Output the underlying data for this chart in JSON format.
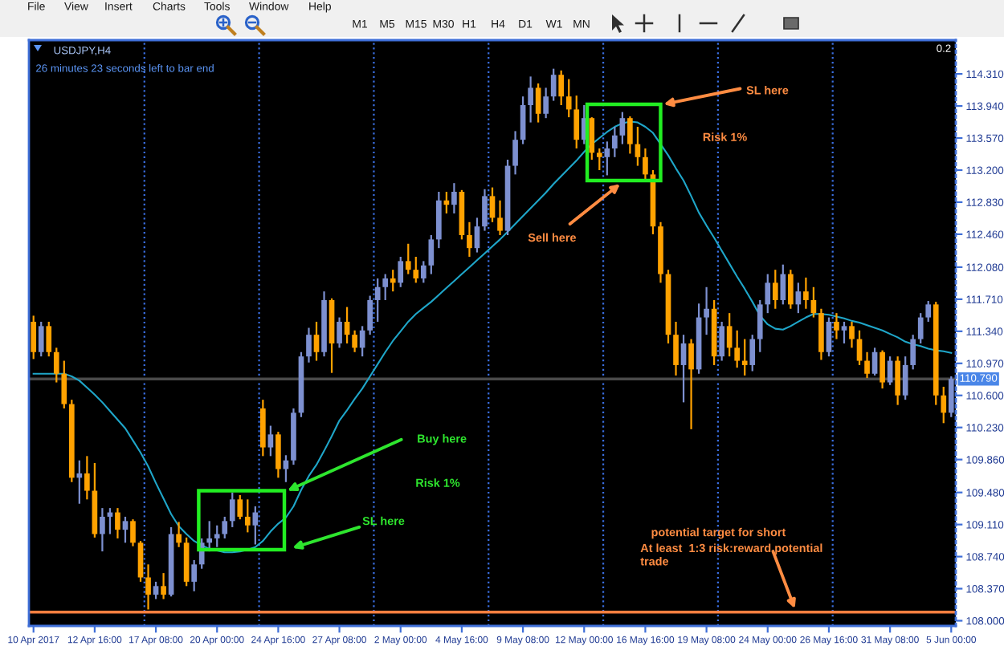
{
  "chart_data": [
    {
      "type": "other",
      "annotations": [
        "File",
        "View",
        "Insert",
        "Charts",
        "Tools",
        "Window",
        "Help",
        "M1",
        "M5",
        "M15",
        "M30",
        "H1",
        "H4",
        "D1",
        "W1",
        "MN"
      ]
    },
    {
      "type": "candlestick",
      "title": "USDJPY,H4",
      "subtitle": "26 minutes 23 seconds left to bar end",
      "categories": [
        "10 Apr 2017",
        null,
        null,
        null,
        null,
        null,
        null,
        null,
        "12 Apr 16:00",
        null,
        null,
        null,
        null,
        null,
        null,
        null,
        "17 Apr 08:00",
        null,
        null,
        null,
        null,
        null,
        null,
        null,
        "20 Apr 00:00",
        null,
        null,
        null,
        null,
        null,
        null,
        null,
        "24 Apr 16:00",
        null,
        null,
        null,
        null,
        null,
        null,
        null,
        "27 Apr 08:00",
        null,
        null,
        null,
        null,
        null,
        null,
        null,
        "2 May 00:00",
        null,
        null,
        null,
        null,
        null,
        null,
        null,
        "4 May 16:00",
        null,
        null,
        null,
        null,
        null,
        null,
        null,
        "9 May 08:00",
        null,
        null,
        null,
        null,
        null,
        null,
        null,
        "12 May 00:00",
        null,
        null,
        null,
        null,
        null,
        null,
        null,
        "16 May 16:00",
        null,
        null,
        null,
        null,
        null,
        null,
        null,
        "19 May 08:00",
        null,
        null,
        null,
        null,
        null,
        null,
        null,
        "24 May 00:00",
        null,
        null,
        null,
        null,
        null,
        null,
        null,
        "26 May 16:00",
        null,
        null,
        null,
        null,
        null,
        null,
        null,
        "31 May 08:00",
        null,
        null,
        null,
        null,
        null,
        null,
        null,
        "5 Jun 00:00"
      ],
      "ohlc": [
        [
          111.45,
          111.52,
          111.02,
          111.1
        ],
        [
          111.1,
          111.45,
          111.05,
          111.4
        ],
        [
          111.4,
          111.45,
          111.05,
          111.1
        ],
        [
          111.1,
          111.15,
          110.75,
          110.85
        ],
        [
          110.85,
          111.0,
          110.45,
          110.5
        ],
        [
          110.5,
          110.55,
          109.6,
          109.65
        ],
        [
          109.65,
          109.85,
          109.35,
          109.7
        ],
        [
          109.7,
          109.9,
          109.4,
          109.5
        ],
        [
          109.5,
          109.82,
          108.96,
          109.0
        ],
        [
          109.0,
          109.3,
          108.8,
          109.2
        ],
        [
          109.2,
          109.3,
          109.0,
          109.25
        ],
        [
          109.25,
          109.3,
          108.95,
          109.05
        ],
        [
          109.05,
          109.2,
          108.9,
          109.15
        ],
        [
          109.15,
          109.17,
          108.86,
          108.9
        ],
        [
          108.9,
          108.92,
          108.45,
          108.5
        ],
        [
          108.5,
          108.65,
          108.13,
          108.3
        ],
        [
          108.3,
          108.45,
          108.25,
          108.4
        ],
        [
          108.4,
          108.55,
          108.25,
          108.3
        ],
        [
          108.3,
          109.08,
          108.28,
          109.0
        ],
        [
          109.0,
          109.14,
          108.85,
          108.9
        ],
        [
          108.9,
          108.96,
          108.4,
          108.45
        ],
        [
          108.45,
          108.7,
          108.34,
          108.65
        ],
        [
          108.65,
          108.95,
          108.6,
          108.9
        ],
        [
          108.9,
          109.15,
          108.8,
          108.95
        ],
        [
          108.95,
          109.1,
          108.85,
          109.0
        ],
        [
          109.0,
          109.2,
          108.95,
          109.15
        ],
        [
          109.15,
          109.48,
          109.08,
          109.4
        ],
        [
          109.4,
          109.45,
          109.17,
          109.2
        ],
        [
          109.2,
          109.4,
          109.02,
          109.1
        ],
        [
          109.1,
          109.32,
          108.88,
          109.25
        ],
        [
          110.45,
          110.55,
          109.9,
          110.0
        ],
        [
          110.0,
          110.25,
          109.9,
          110.15
        ],
        [
          110.15,
          110.18,
          109.65,
          109.75
        ],
        [
          109.75,
          109.91,
          109.6,
          109.85
        ],
        [
          109.85,
          110.45,
          109.8,
          110.4
        ],
        [
          110.4,
          111.1,
          110.35,
          111.05
        ],
        [
          111.05,
          111.38,
          110.98,
          111.3
        ],
        [
          111.3,
          111.45,
          111.0,
          111.1
        ],
        [
          111.1,
          111.8,
          111.05,
          111.7
        ],
        [
          111.7,
          111.72,
          110.86,
          111.2
        ],
        [
          111.2,
          111.5,
          111.15,
          111.45
        ],
        [
          111.45,
          111.62,
          111.2,
          111.3
        ],
        [
          111.3,
          111.35,
          111.1,
          111.15
        ],
        [
          111.15,
          111.4,
          111.05,
          111.35
        ],
        [
          111.35,
          111.75,
          111.3,
          111.7
        ],
        [
          111.7,
          111.95,
          111.45,
          111.85
        ],
        [
          111.85,
          112.0,
          111.7,
          111.95
        ],
        [
          111.95,
          112.05,
          111.8,
          111.9
        ],
        [
          111.9,
          112.2,
          111.85,
          112.15
        ],
        [
          112.15,
          112.35,
          112.0,
          112.05
        ],
        [
          112.05,
          112.2,
          111.9,
          111.95
        ],
        [
          111.95,
          112.15,
          111.9,
          112.1
        ],
        [
          112.1,
          112.45,
          112.0,
          112.4
        ],
        [
          112.4,
          112.95,
          112.3,
          112.85
        ],
        [
          112.85,
          112.95,
          112.7,
          112.8
        ],
        [
          112.8,
          113.05,
          112.7,
          112.95
        ],
        [
          112.95,
          112.97,
          112.4,
          112.45
        ],
        [
          112.45,
          112.6,
          112.2,
          112.3
        ],
        [
          112.3,
          112.65,
          112.25,
          112.55
        ],
        [
          112.55,
          112.98,
          112.5,
          112.9
        ],
        [
          112.9,
          113.0,
          112.6,
          112.65
        ],
        [
          112.65,
          112.85,
          112.45,
          112.5
        ],
        [
          112.5,
          113.32,
          112.45,
          113.25
        ],
        [
          113.25,
          113.65,
          113.15,
          113.55
        ],
        [
          113.55,
          114.05,
          113.5,
          113.95
        ],
        [
          113.95,
          114.28,
          113.75,
          114.15
        ],
        [
          114.15,
          114.2,
          113.75,
          113.85
        ],
        [
          113.85,
          114.15,
          113.8,
          114.05
        ],
        [
          114.05,
          114.37,
          114.0,
          114.3
        ],
        [
          114.3,
          114.35,
          113.95,
          114.05
        ],
        [
          114.05,
          114.25,
          113.81,
          113.9
        ],
        [
          113.9,
          114.06,
          113.45,
          113.55
        ],
        [
          113.55,
          113.95,
          113.5,
          113.8
        ],
        [
          113.8,
          113.81,
          113.32,
          113.4
        ],
        [
          113.4,
          113.45,
          113.2,
          113.35
        ],
        [
          113.35,
          113.53,
          113.14,
          113.45
        ],
        [
          113.45,
          113.7,
          113.35,
          113.6
        ],
        [
          113.6,
          113.87,
          113.5,
          113.8
        ],
        [
          113.8,
          113.82,
          113.39,
          113.5
        ],
        [
          113.5,
          113.7,
          113.25,
          113.35
        ],
        [
          113.35,
          113.45,
          113.08,
          113.15
        ],
        [
          113.15,
          113.2,
          112.46,
          112.55
        ],
        [
          112.55,
          112.6,
          111.9,
          112.0
        ],
        [
          112.0,
          112.05,
          111.2,
          111.3
        ],
        [
          111.3,
          111.45,
          110.83,
          110.95
        ],
        [
          110.95,
          111.3,
          110.52,
          111.2
        ],
        [
          111.2,
          111.25,
          110.21,
          110.9
        ],
        [
          110.9,
          111.66,
          110.85,
          111.5
        ],
        [
          111.5,
          111.85,
          111.3,
          111.6
        ],
        [
          111.6,
          111.7,
          110.95,
          111.05
        ],
        [
          111.05,
          111.45,
          111.0,
          111.4
        ],
        [
          111.4,
          111.55,
          111.05,
          111.15
        ],
        [
          111.15,
          111.35,
          110.92,
          111.0
        ],
        [
          111.0,
          111.25,
          110.83,
          110.95
        ],
        [
          110.95,
          111.3,
          110.88,
          111.25
        ],
        [
          111.25,
          111.7,
          111.1,
          111.65
        ],
        [
          111.65,
          112.0,
          111.55,
          111.9
        ],
        [
          111.9,
          112.05,
          111.6,
          111.7
        ],
        [
          111.7,
          112.11,
          111.65,
          112.0
        ],
        [
          112.0,
          112.05,
          111.6,
          111.65
        ],
        [
          111.65,
          111.9,
          111.55,
          111.8
        ],
        [
          111.8,
          111.96,
          111.6,
          111.7
        ],
        [
          111.7,
          111.85,
          111.5,
          111.55
        ],
        [
          111.55,
          111.6,
          111.01,
          111.1
        ],
        [
          111.1,
          111.5,
          111.05,
          111.45
        ],
        [
          111.45,
          111.55,
          111.25,
          111.35
        ],
        [
          111.35,
          111.45,
          111.2,
          111.4
        ],
        [
          111.4,
          111.45,
          111.15,
          111.25
        ],
        [
          111.25,
          111.35,
          110.95,
          111.0
        ],
        [
          111.0,
          111.1,
          110.8,
          110.85
        ],
        [
          110.85,
          111.15,
          110.83,
          111.1
        ],
        [
          111.1,
          111.12,
          110.68,
          110.75
        ],
        [
          110.75,
          111.05,
          110.72,
          111.0
        ],
        [
          111.0,
          111.05,
          110.49,
          110.6
        ],
        [
          110.6,
          111.05,
          110.55,
          110.95
        ],
        [
          110.95,
          111.3,
          110.9,
          111.25
        ],
        [
          111.25,
          111.55,
          111.2,
          111.5
        ],
        [
          111.5,
          111.69,
          111.45,
          111.65
        ],
        [
          111.65,
          111.68,
          110.49,
          110.6
        ],
        [
          110.6,
          110.7,
          110.28,
          110.4
        ],
        [
          110.4,
          110.82,
          110.35,
          110.79
        ]
      ],
      "colors": [
        "#ffa200",
        "#7d90d0",
        "#ffa200",
        "#ffa200",
        "#ffa200",
        "#ffa200",
        "#7d90d0",
        "#ffa200",
        "#ffa200",
        "#7d90d0",
        "#7d90d0",
        "#ffa200",
        "#7d90d0",
        "#ffa200",
        "#ffa200",
        "#ffa200",
        "#7d90d0",
        "#ffa200",
        "#7d90d0",
        "#ffa200",
        "#ffa200",
        "#7d90d0",
        "#7d90d0",
        "#7d90d0",
        "#7d90d0",
        "#7d90d0",
        "#7d90d0",
        "#ffa200",
        "#ffa200",
        "#7d90d0",
        "#ffa200",
        "#7d90d0",
        "#ffa200",
        "#7d90d0",
        "#7d90d0",
        "#7d90d0",
        "#7d90d0",
        "#ffa200",
        "#7d90d0",
        "#ffa200",
        "#7d90d0",
        "#ffa200",
        "#ffa200",
        "#7d90d0",
        "#7d90d0",
        "#7d90d0",
        "#7d90d0",
        "#ffa200",
        "#7d90d0",
        "#ffa200",
        "#ffa200",
        "#7d90d0",
        "#7d90d0",
        "#7d90d0",
        "#ffa200",
        "#7d90d0",
        "#ffa200",
        "#ffa200",
        "#7d90d0",
        "#7d90d0",
        "#ffa200",
        "#ffa200",
        "#7d90d0",
        "#7d90d0",
        "#7d90d0",
        "#7d90d0",
        "#ffa200",
        "#7d90d0",
        "#7d90d0",
        "#ffa200",
        "#ffa200",
        "#ffa200",
        "#7d90d0",
        "#ffa200",
        "#ffa200",
        "#7d90d0",
        "#7d90d0",
        "#7d90d0",
        "#ffa200",
        "#ffa200",
        "#ffa200",
        "#ffa200",
        "#ffa200",
        "#ffa200",
        "#ffa200",
        "#7d90d0",
        "#ffa200",
        "#7d90d0",
        "#7d90d0",
        "#ffa200",
        "#7d90d0",
        "#ffa200",
        "#ffa200",
        "#ffa200",
        "#7d90d0",
        "#7d90d0",
        "#7d90d0",
        "#ffa200",
        "#7d90d0",
        "#ffa200",
        "#7d90d0",
        "#ffa200",
        "#ffa200",
        "#ffa200",
        "#7d90d0",
        "#ffa200",
        "#7d90d0",
        "#ffa200",
        "#ffa200",
        "#ffa200",
        "#7d90d0",
        "#ffa200",
        "#7d90d0",
        "#ffa200",
        "#7d90d0",
        "#7d90d0",
        "#7d90d0",
        "#7d90d0",
        "#ffa200",
        "#ffa200",
        "#7d90d0"
      ],
      "series": [
        {
          "type": "line",
          "color": "#1fa6c9",
          "values": [
            110.85,
            110.85,
            110.85,
            110.85,
            110.85,
            110.82,
            110.77,
            110.69,
            110.61,
            110.52,
            110.42,
            110.32,
            110.22,
            110.08,
            109.94,
            109.78,
            109.59,
            109.41,
            109.23,
            109.09,
            109.0,
            108.92,
            108.87,
            108.83,
            108.81,
            108.79,
            108.79,
            108.8,
            108.82,
            108.85,
            108.92,
            109.03,
            109.12,
            109.19,
            109.32,
            109.51,
            109.67,
            109.8,
            109.96,
            110.13,
            110.31,
            110.43,
            110.56,
            110.68,
            110.82,
            110.96,
            111.1,
            111.23,
            111.34,
            111.45,
            111.54,
            111.61,
            111.68,
            111.76,
            111.84,
            111.92,
            112.0,
            112.08,
            112.16,
            112.24,
            112.32,
            112.4,
            112.49,
            112.58,
            112.67,
            112.76,
            112.85,
            112.94,
            113.04,
            113.13,
            113.22,
            113.31,
            113.41,
            113.5,
            113.57,
            113.64,
            113.7,
            113.74,
            113.76,
            113.75,
            113.7,
            113.63,
            113.5,
            113.37,
            113.22,
            113.08,
            112.9,
            112.71,
            112.56,
            112.42,
            112.27,
            112.12,
            111.97,
            111.83,
            111.68,
            111.52,
            111.42,
            111.37,
            111.36,
            111.4,
            111.45,
            111.5,
            111.54,
            111.54,
            111.53,
            111.51,
            111.49,
            111.46,
            111.44,
            111.41,
            111.38,
            111.35,
            111.31,
            111.27,
            111.22,
            111.19,
            111.17,
            111.14,
            111.12,
            111.11,
            111.09
          ]
        }
      ],
      "ylim": [
        107.94,
        114.7
      ],
      "yticks": [
        {
          "value": 114.31,
          "label": "114.310"
        },
        {
          "value": 113.94,
          "label": "113.940"
        },
        {
          "value": 113.57,
          "label": "113.570"
        },
        {
          "value": 113.2,
          "label": "113.200"
        },
        {
          "value": 112.83,
          "label": "112.830"
        },
        {
          "value": 112.46,
          "label": "112.460"
        },
        {
          "value": 112.08,
          "label": "112.080"
        },
        {
          "value": 111.71,
          "label": "111.710"
        },
        {
          "value": 111.34,
          "label": "111.340"
        },
        {
          "value": 110.97,
          "label": "110.970"
        },
        {
          "value": 110.6,
          "label": "110.600"
        },
        {
          "value": 110.23,
          "label": "110.230"
        },
        {
          "value": 109.86,
          "label": "109.860"
        },
        {
          "value": 109.48,
          "label": "109.480"
        },
        {
          "value": 109.11,
          "label": "109.110"
        },
        {
          "value": 108.74,
          "label": "108.740"
        },
        {
          "value": 108.37,
          "label": "108.370"
        },
        {
          "value": 108.0,
          "label": "108.000"
        }
      ],
      "ref_lines": [
        {
          "axis": "y",
          "value": 110.79,
          "label": "110.790",
          "color": "#4a4a4a"
        },
        {
          "axis": "y",
          "value": 108.1,
          "color": "#ff8040"
        }
      ],
      "annotations": [
        "SL here",
        "Risk 1%",
        "Sell here",
        "Buy here",
        "Risk 1%",
        "SL here",
        "potential target for short",
        "At least  1:3 risk:reward potential\ntrade",
        "0.2"
      ]
    }
  ]
}
